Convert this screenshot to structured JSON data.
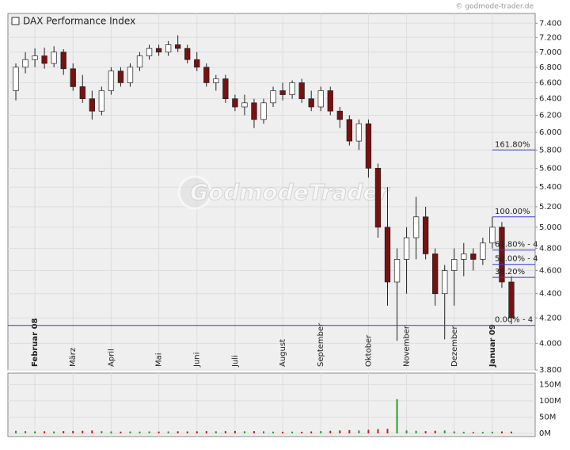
{
  "chart_data": {
    "type": "candlestick",
    "title": "DAX Performance Index",
    "source": "© godmode-trader.de",
    "watermark": "GodmodeTrader",
    "categories": [
      "",
      "",
      "Februar 08",
      "",
      "",
      "",
      "März",
      "",
      "",
      "",
      "April",
      "",
      "",
      "",
      "",
      "Mai",
      "",
      "",
      "",
      "Juni",
      "",
      "",
      "",
      "Juli",
      "",
      "",
      "",
      "",
      "August",
      "",
      "",
      "",
      "September",
      "",
      "",
      "",
      "",
      "Oktober",
      "",
      "",
      "",
      "November",
      "",
      "",
      "",
      "",
      "Dezember",
      "",
      "",
      "",
      "Januar 09",
      "",
      ""
    ],
    "open": [
      6500,
      6800,
      6900,
      6950,
      6850,
      7000,
      6780,
      6550,
      6400,
      6250,
      6500,
      6750,
      6600,
      6800,
      6950,
      7050,
      7000,
      7100,
      7050,
      6900,
      6800,
      6600,
      6650,
      6400,
      6300,
      6350,
      6150,
      6350,
      6500,
      6450,
      6600,
      6400,
      6300,
      6500,
      6250,
      6150,
      5900,
      6100,
      5600,
      5000,
      4500,
      4700,
      4900,
      5100,
      4750,
      4400,
      4600,
      4700,
      4750,
      4700,
      4850,
      5000,
      4500
    ],
    "high": [
      6850,
      7000,
      7050,
      7060,
      7080,
      7040,
      6850,
      6700,
      6500,
      6550,
      6800,
      6800,
      6850,
      7000,
      7100,
      7100,
      7150,
      7230,
      7100,
      7000,
      6850,
      6700,
      6700,
      6450,
      6450,
      6400,
      6400,
      6550,
      6600,
      6630,
      6650,
      6500,
      6550,
      6550,
      6300,
      6200,
      6150,
      6150,
      5650,
      5400,
      4800,
      5000,
      5300,
      5200,
      4800,
      4650,
      4800,
      4850,
      4800,
      4900,
      5100,
      5050,
      4550
    ],
    "low": [
      6380,
      6720,
      6800,
      6780,
      6800,
      6700,
      6500,
      6350,
      6150,
      6200,
      6450,
      6550,
      6550,
      6750,
      6900,
      6950,
      6950,
      7000,
      6850,
      6750,
      6550,
      6500,
      6350,
      6250,
      6200,
      6050,
      6100,
      6300,
      6380,
      6400,
      6350,
      6250,
      6250,
      6200,
      6050,
      5850,
      5800,
      5500,
      4900,
      4300,
      4020,
      4400,
      4700,
      4700,
      4300,
      4030,
      4300,
      4550,
      4600,
      4650,
      4800,
      4450,
      4150
    ],
    "close": [
      6800,
      6900,
      6950,
      6850,
      7000,
      6780,
      6550,
      6400,
      6250,
      6500,
      6750,
      6600,
      6800,
      6950,
      7050,
      7000,
      7100,
      7050,
      6900,
      6800,
      6600,
      6650,
      6400,
      6300,
      6350,
      6150,
      6350,
      6500,
      6450,
      6600,
      6400,
      6300,
      6500,
      6250,
      6150,
      5900,
      6100,
      5600,
      5000,
      4500,
      4700,
      4900,
      5100,
      4750,
      4400,
      4600,
      4700,
      4750,
      4700,
      4850,
      5000,
      4500,
      4200
    ],
    "volume": [
      8000000,
      7000000,
      6000000,
      6500000,
      6000000,
      7000000,
      7500000,
      8000000,
      9000000,
      7000000,
      6000000,
      5500000,
      6000000,
      5500000,
      6000000,
      5500000,
      6000000,
      6500000,
      6000000,
      6500000,
      7000000,
      6500000,
      7000000,
      7500000,
      6500000,
      7000000,
      6500000,
      5500000,
      5000000,
      5500000,
      5000000,
      6000000,
      7000000,
      8000000,
      9000000,
      10000000,
      9000000,
      11000000,
      13000000,
      14000000,
      105000000,
      9000000,
      8000000,
      7000000,
      8000000,
      9000000,
      6000000,
      5000000,
      4000000,
      4500000,
      5000000,
      6000000,
      5500000
    ],
    "up_color": "#ffffff",
    "down_color": "#7a1010",
    "vol_up_color": "#2f9a2f",
    "vol_down_color": "#c02020",
    "log_y": true,
    "grid": true,
    "ylim": [
      3800,
      7540
    ],
    "yticks": [
      {
        "value": 3800,
        "label": "3.800"
      },
      {
        "value": 4000,
        "label": "4.000"
      },
      {
        "value": 4200,
        "label": "4.200"
      },
      {
        "value": 4400,
        "label": "4.400"
      },
      {
        "value": 4600,
        "label": "4.600"
      },
      {
        "value": 4800,
        "label": "4.800"
      },
      {
        "value": 5000,
        "label": "5.000"
      },
      {
        "value": 5200,
        "label": "5.200"
      },
      {
        "value": 5400,
        "label": "5.400"
      },
      {
        "value": 5600,
        "label": "5.600"
      },
      {
        "value": 5800,
        "label": "5.800"
      },
      {
        "value": 6000,
        "label": "6.000"
      },
      {
        "value": 6200,
        "label": "6.200"
      },
      {
        "value": 6400,
        "label": "6.400"
      },
      {
        "value": 6600,
        "label": "6.600"
      },
      {
        "value": 6800,
        "label": "6.800"
      },
      {
        "value": 7000,
        "label": "7.000"
      },
      {
        "value": 7200,
        "label": "7.200"
      },
      {
        "value": 7400,
        "label": "7.400"
      }
    ],
    "vol_ylim": [
      0,
      180000000
    ],
    "vol_yticks": [
      {
        "value": 0,
        "label": "0M"
      },
      {
        "value": 50000000,
        "label": "50M"
      },
      {
        "value": 100000000,
        "label": "100M"
      },
      {
        "value": 150000000,
        "label": "150M"
      }
    ],
    "fib_color": "#3a3acc",
    "fib_levels": [
      {
        "label": "161.80%",
        "value": 5800
      },
      {
        "label": "100.00%",
        "value": 5100
      },
      {
        "label": "61.80% - 4",
        "value": 4785
      },
      {
        "label": "50.00% - 4",
        "value": 4655
      },
      {
        "label": "38.20%",
        "value": 4540
      },
      {
        "label": "0.00% - 4",
        "value": 4140
      }
    ]
  }
}
